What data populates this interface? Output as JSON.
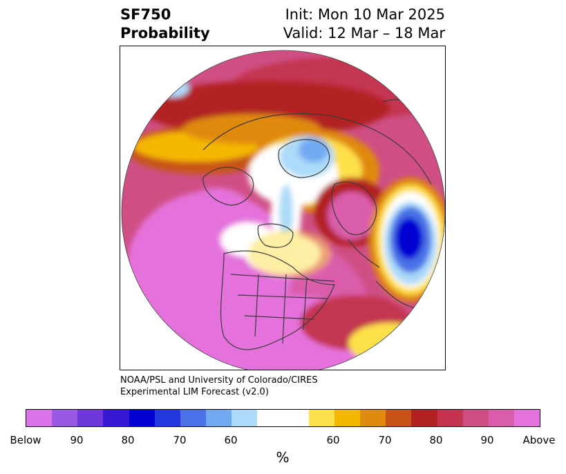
{
  "title": {
    "field": "SF750",
    "kind": "Probability",
    "init": "Init: Mon 10 Mar 2025",
    "valid": "Valid: 12 Mar – 18 Mar"
  },
  "credit": {
    "line1": "NOAA/PSL and University of Colorado/CIRES",
    "line2": "Experimental LIM Forecast (v2.0)"
  },
  "colorbar": {
    "unit": "%",
    "colors": [
      "#da72e8",
      "#9b58e4",
      "#6e38da",
      "#3818d6",
      "#0000d2",
      "#2238de",
      "#4a72e6",
      "#72aaf2",
      "#acdaf8",
      "#ffffff",
      "#ffffff",
      "#fee04a",
      "#f5b800",
      "#e08a10",
      "#c85418",
      "#b22222",
      "#c43450",
      "#cf4f85",
      "#da5dab",
      "#e572dc"
    ],
    "tick_labels": [
      "Below",
      "90",
      "80",
      "70",
      "60",
      "60",
      "70",
      "80",
      "90",
      "Above"
    ]
  },
  "map": {
    "projection": "north-polar-stereographic",
    "features": [
      "coastlines",
      "country-borders",
      "us-state-borders"
    ],
    "high_probability_region": "Above-normal probability dominant (pink/magenta) over North America, North Pacific and central Eurasia",
    "below_minimum": "Below-normal core (deep blue) over eastern Europe / western Russia"
  }
}
